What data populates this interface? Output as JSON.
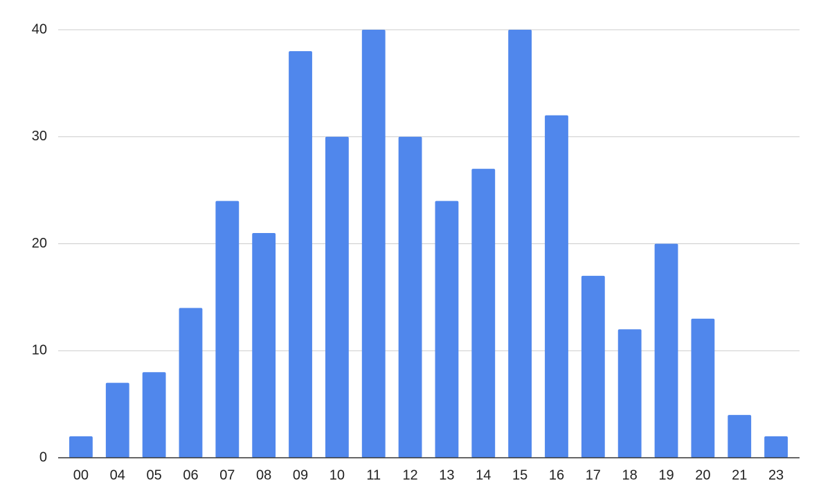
{
  "chart_data": {
    "type": "bar",
    "categories": [
      "00",
      "04",
      "05",
      "06",
      "07",
      "08",
      "09",
      "10",
      "11",
      "12",
      "13",
      "14",
      "15",
      "16",
      "17",
      "18",
      "19",
      "20",
      "21",
      "23"
    ],
    "values": [
      2,
      7,
      8,
      14,
      24,
      21,
      38,
      30,
      40,
      30,
      24,
      27,
      40,
      32,
      17,
      12,
      20,
      13,
      4,
      2
    ],
    "color": "#5087ec",
    "ylim": [
      0,
      40
    ],
    "yticks": [
      0,
      10,
      20,
      30,
      40
    ],
    "grid": true
  }
}
